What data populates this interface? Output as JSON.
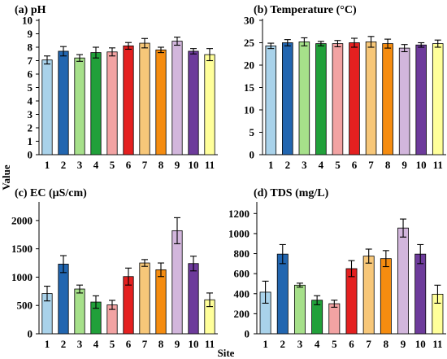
{
  "figure": {
    "ylabel": "Value",
    "xlabel": "Site"
  },
  "chart_data": [
    {
      "type": "bar",
      "title": "(a) pH",
      "categories": [
        "1",
        "2",
        "3",
        "4",
        "5",
        "6",
        "7",
        "8",
        "9",
        "10",
        "11"
      ],
      "values": [
        7.05,
        7.7,
        7.2,
        7.6,
        7.65,
        8.1,
        8.3,
        7.8,
        8.45,
        7.7,
        7.45
      ],
      "errors": [
        0.3,
        0.35,
        0.25,
        0.4,
        0.3,
        0.25,
        0.35,
        0.2,
        0.3,
        0.2,
        0.45
      ],
      "ylim": [
        0,
        10
      ],
      "yticks": [
        0,
        1,
        2,
        3,
        4,
        5,
        6,
        7,
        8,
        9,
        10
      ],
      "colors": [
        "#a9d2ea",
        "#2266b0",
        "#a6e08a",
        "#21a03a",
        "#f2a3a3",
        "#e42020",
        "#f7c779",
        "#f58c10",
        "#d2b6dc",
        "#6d3b9b",
        "#ffff9a"
      ],
      "grid": false,
      "legend": "none"
    },
    {
      "type": "bar",
      "title": "(b) Temperature (°C)",
      "categories": [
        "1",
        "2",
        "3",
        "4",
        "5",
        "6",
        "7",
        "8",
        "9",
        "10",
        "11"
      ],
      "values": [
        24.3,
        25.0,
        25.2,
        24.8,
        24.8,
        25.0,
        25.2,
        24.8,
        23.8,
        24.5,
        24.8
      ],
      "errors": [
        0.6,
        0.7,
        0.9,
        0.5,
        0.7,
        1.0,
        1.2,
        1.0,
        0.8,
        0.5,
        0.8
      ],
      "ylim": [
        0,
        30
      ],
      "yticks": [
        0,
        5,
        10,
        15,
        20,
        25,
        30
      ],
      "colors": [
        "#a9d2ea",
        "#2266b0",
        "#a6e08a",
        "#21a03a",
        "#f2a3a3",
        "#e42020",
        "#f7c779",
        "#f58c10",
        "#d2b6dc",
        "#6d3b9b",
        "#ffff9a"
      ],
      "grid": false,
      "legend": "none"
    },
    {
      "type": "bar",
      "title": "(c) EC (μS/cm)",
      "categories": [
        "1",
        "2",
        "3",
        "4",
        "5",
        "6",
        "7",
        "8",
        "9",
        "10",
        "11"
      ],
      "values": [
        710,
        1230,
        790,
        560,
        510,
        1010,
        1250,
        1130,
        1820,
        1240,
        600
      ],
      "errors": [
        130,
        150,
        70,
        110,
        80,
        150,
        60,
        120,
        230,
        130,
        120
      ],
      "ylim": [
        0,
        2300
      ],
      "yticks": [
        0,
        500,
        1000,
        1500,
        2000
      ],
      "colors": [
        "#a9d2ea",
        "#2266b0",
        "#a6e08a",
        "#21a03a",
        "#f2a3a3",
        "#e42020",
        "#f7c779",
        "#f58c10",
        "#d2b6dc",
        "#6d3b9b",
        "#ffff9a"
      ],
      "grid": false,
      "legend": "none"
    },
    {
      "type": "bar",
      "title": "(d) TDS (mg/L)",
      "categories": [
        "1",
        "2",
        "3",
        "4",
        "5",
        "6",
        "7",
        "8",
        "9",
        "10",
        "11"
      ],
      "values": [
        415,
        795,
        485,
        335,
        300,
        650,
        775,
        750,
        1055,
        795,
        395
      ],
      "errors": [
        110,
        95,
        20,
        45,
        35,
        80,
        70,
        80,
        90,
        95,
        90
      ],
      "ylim": [
        0,
        1300
      ],
      "yticks": [
        0,
        200,
        400,
        600,
        800,
        1000,
        1200
      ],
      "colors": [
        "#a9d2ea",
        "#2266b0",
        "#a6e08a",
        "#21a03a",
        "#f2a3a3",
        "#e42020",
        "#f7c779",
        "#f58c10",
        "#d2b6dc",
        "#6d3b9b",
        "#ffff9a"
      ],
      "grid": false,
      "legend": "none"
    }
  ]
}
